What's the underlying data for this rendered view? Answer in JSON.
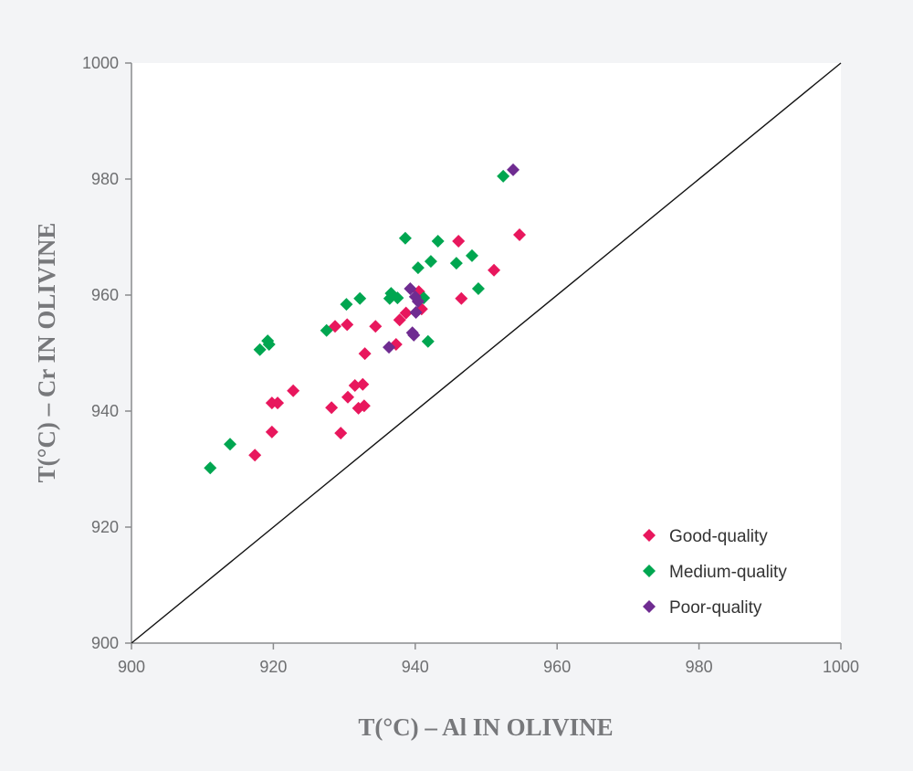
{
  "chart_data": {
    "type": "scatter",
    "xlabel": "T(°C) – Al IN OLIVINE",
    "ylabel": "T(°C) – Cr IN OLIVINE",
    "xlim": [
      900,
      1000
    ],
    "ylim": [
      900,
      1000
    ],
    "xticks": [
      900,
      920,
      940,
      960,
      980,
      1000
    ],
    "yticks": [
      900,
      920,
      940,
      960,
      980,
      1000
    ],
    "grid": false,
    "legend_position": "bottom-right",
    "reference_line": "1:1",
    "series": [
      {
        "name": "Good-quality",
        "color": "#e8175d",
        "points": [
          [
            954.7,
            970.4
          ],
          [
            946.1,
            969.3
          ],
          [
            951.1,
            964.3
          ],
          [
            946.5,
            959.4
          ],
          [
            940.5,
            960.6
          ],
          [
            940.9,
            957.6
          ],
          [
            938.7,
            956.9
          ],
          [
            937.8,
            955.7
          ],
          [
            937.3,
            951.5
          ],
          [
            934.4,
            954.6
          ],
          [
            930.4,
            954.9
          ],
          [
            928.7,
            954.6
          ],
          [
            932.9,
            949.9
          ],
          [
            922.8,
            943.5
          ],
          [
            919.8,
            941.4
          ],
          [
            920.6,
            941.4
          ],
          [
            931.5,
            944.4
          ],
          [
            932.6,
            944.6
          ],
          [
            930.5,
            942.4
          ],
          [
            928.2,
            940.6
          ],
          [
            932.0,
            940.5
          ],
          [
            932.8,
            940.9
          ],
          [
            919.8,
            936.4
          ],
          [
            929.5,
            936.2
          ],
          [
            917.4,
            932.4
          ]
        ]
      },
      {
        "name": "Medium-quality",
        "color": "#00a650",
        "points": [
          [
            911.1,
            930.2
          ],
          [
            913.9,
            934.3
          ],
          [
            918.1,
            950.6
          ],
          [
            919.2,
            952.1
          ],
          [
            919.4,
            951.5
          ],
          [
            927.5,
            953.9
          ],
          [
            930.3,
            958.4
          ],
          [
            932.2,
            959.4
          ],
          [
            938.6,
            969.8
          ],
          [
            943.2,
            969.3
          ],
          [
            948.0,
            966.8
          ],
          [
            942.2,
            965.8
          ],
          [
            940.4,
            964.7
          ],
          [
            945.8,
            965.5
          ],
          [
            948.9,
            961.1
          ],
          [
            936.6,
            960.3
          ],
          [
            936.4,
            959.4
          ],
          [
            937.5,
            959.5
          ],
          [
            941.2,
            959.5
          ],
          [
            941.8,
            952.0
          ],
          [
            952.4,
            980.5
          ]
        ]
      },
      {
        "name": "Poor-quality",
        "color": "#6f2c91",
        "points": [
          [
            953.8,
            981.6
          ],
          [
            939.3,
            961.1
          ],
          [
            940.0,
            959.7
          ],
          [
            940.4,
            958.9
          ],
          [
            940.1,
            957.0
          ],
          [
            939.6,
            953.5
          ],
          [
            939.8,
            953.1
          ],
          [
            936.3,
            951.0
          ]
        ]
      }
    ]
  }
}
